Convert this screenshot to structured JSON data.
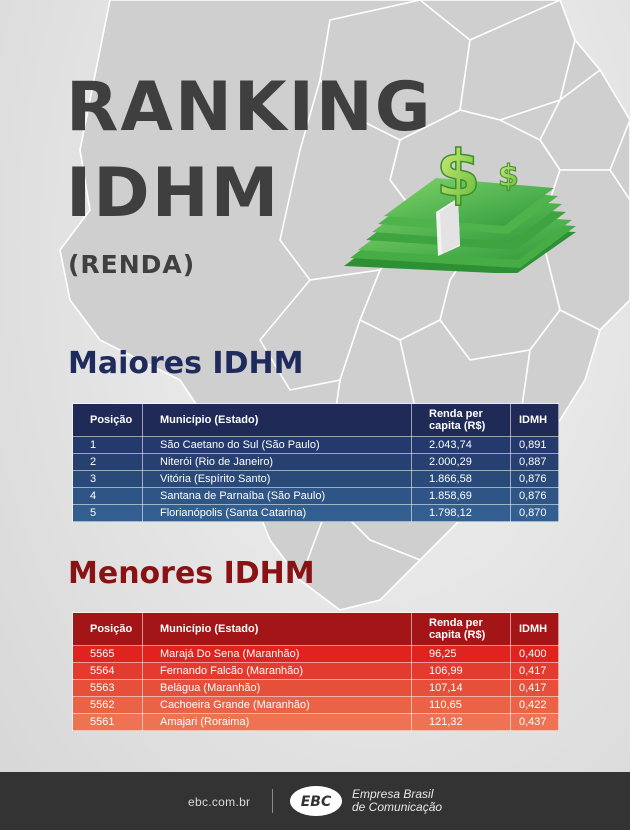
{
  "title": {
    "line1": "RANKING",
    "line2": "IDHM",
    "line3": "(RENDA)"
  },
  "columns": [
    "Posição",
    "Município (Estado)",
    "Renda per capita (R$)",
    "IDMH"
  ],
  "maiores": {
    "heading": "Maiores IDHM",
    "rows": [
      {
        "pos": "1",
        "mun": "São Caetano do Sul (São Paulo)",
        "renda": "2.043,74",
        "idhm": "0,891"
      },
      {
        "pos": "2",
        "mun": "Niterói (Rio de Janeiro)",
        "renda": "2.000,29",
        "idhm": "0,887"
      },
      {
        "pos": "3",
        "mun": "Vitória (Espírito Santo)",
        "renda": "1.866,58",
        "idhm": "0,876"
      },
      {
        "pos": "4",
        "mun": "Santana de Parnaíba (São Paulo)",
        "renda": "1.858,69",
        "idhm": "0,876"
      },
      {
        "pos": "5",
        "mun": "Florianópolis (Santa Catarina)",
        "renda": "1.798,12",
        "idhm": "0,870"
      }
    ]
  },
  "menores": {
    "heading": "Menores IDHM",
    "rows": [
      {
        "pos": "5565",
        "mun": "Marajá Do Sena (Maranhão)",
        "renda": "96,25",
        "idhm": "0,400"
      },
      {
        "pos": "5564",
        "mun": "Fernando Falcão (Maranhão)",
        "renda": "106,99",
        "idhm": "0,417"
      },
      {
        "pos": "5563",
        "mun": "Belágua (Maranhão)",
        "renda": "107,14",
        "idhm": "0,417"
      },
      {
        "pos": "5562",
        "mun": "Cachoeira Grande (Maranhão)",
        "renda": "110,65",
        "idhm": "0,422"
      },
      {
        "pos": "5561",
        "mun": "Amajari (Roraima)",
        "renda": "121,32",
        "idhm": "0,437"
      }
    ]
  },
  "footer": {
    "site": "ebc.com.br",
    "logo_text": "EBC",
    "org_line1": "Empresa Brasil",
    "org_line2": "de Comunicação"
  },
  "colors": {
    "heading_blue": "#1e2b5c",
    "heading_red": "#8b1214",
    "money_green": "#3aa845"
  },
  "icons": [
    "brazil-map-background",
    "money-stack-icon",
    "dollar-sign-icon",
    "ebc-logo"
  ]
}
